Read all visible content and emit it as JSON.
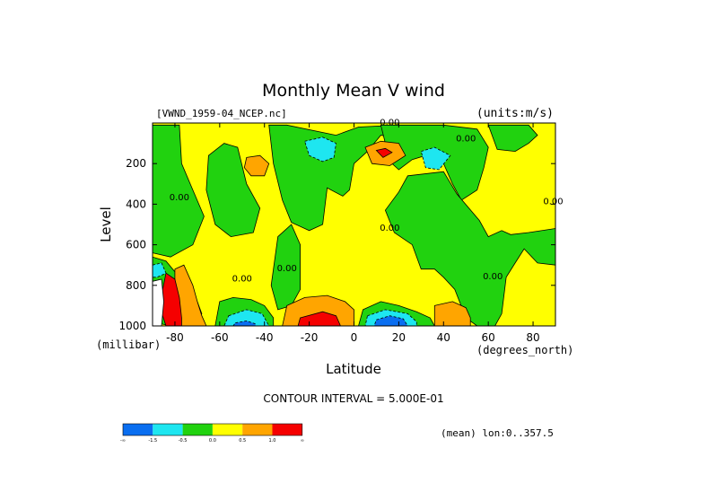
{
  "chart_data": {
    "type": "heatmap",
    "title": "Monthly Mean V wind",
    "file_label": "[VWND_1959-04_NCEP.nc]",
    "units_label": "(units:m/s)",
    "xlabel": "Latitude",
    "ylabel": "Level",
    "x_unit_label": "(degrees_north)",
    "y_unit_label": "(millibar)",
    "xlim": [
      -90,
      90
    ],
    "ylim": [
      0,
      1000
    ],
    "y_inverted": true,
    "x_ticks": [
      -80,
      -60,
      -40,
      -20,
      0,
      20,
      40,
      60,
      80
    ],
    "y_ticks": [
      200,
      400,
      600,
      800,
      1000
    ],
    "x_tick_labels": [
      "-80",
      "-60",
      "-40",
      "-20",
      "0",
      "20",
      "40",
      "60",
      "80"
    ],
    "y_tick_labels": [
      "200",
      "400",
      "600",
      "800",
      "1000"
    ],
    "contour_interval_label": "CONTOUR INTERVAL = 5.000E-01",
    "mean_label": "(mean) lon:0..357.5",
    "contour_labels": [
      {
        "text": "0.00",
        "x": 16,
        "y": 10
      },
      {
        "text": "0.00",
        "x": 50,
        "y": 90
      },
      {
        "text": "0.00",
        "x": -78,
        "y": 380
      },
      {
        "text": "0.00",
        "x": 16,
        "y": 530
      },
      {
        "text": "0.00",
        "x": -50,
        "y": 780
      },
      {
        "text": "0.00",
        "x": -30,
        "y": 730
      },
      {
        "text": "0.00",
        "x": 62,
        "y": 770
      },
      {
        "text": "0.00",
        "x": 89,
        "y": 400
      }
    ],
    "legend": {
      "levels": [
        {
          "label": "-∞",
          "color": "#0a6ef0"
        },
        {
          "label": "-1.5",
          "color": "#1ee6f0"
        },
        {
          "label": "-0.5",
          "color": "#21d20f"
        },
        {
          "label": "0.0",
          "color": "#ffff00"
        },
        {
          "label": "0.5",
          "color": "#ffa500"
        },
        {
          "label": "1.0",
          "color": "#f50000"
        },
        {
          "label": "∞",
          "color": ""
        }
      ]
    },
    "field": {
      "background": "#ffff00",
      "regions": [
        {
          "level": "neg1",
          "color": "#21d20f",
          "points": [
            [
              -90,
              10
            ],
            [
              -78,
              10
            ],
            [
              -77,
              200
            ],
            [
              -72,
              330
            ],
            [
              -67,
              460
            ],
            [
              -72,
              600
            ],
            [
              -82,
              660
            ],
            [
              -90,
              640
            ]
          ]
        },
        {
          "level": "neg1",
          "color": "#21d20f",
          "points": [
            [
              -65,
              160
            ],
            [
              -58,
              100
            ],
            [
              -52,
              120
            ],
            [
              -48,
              300
            ],
            [
              -42,
              420
            ],
            [
              -45,
              540
            ],
            [
              -55,
              560
            ],
            [
              -62,
              500
            ],
            [
              -66,
              330
            ]
          ]
        },
        {
          "level": "neg1",
          "color": "#21d20f",
          "points": [
            [
              -38,
              10
            ],
            [
              -30,
              10
            ],
            [
              -8,
              60
            ],
            [
              2,
              20
            ],
            [
              20,
              10
            ],
            [
              22,
              80
            ],
            [
              12,
              60
            ],
            [
              6,
              140
            ],
            [
              0,
              200
            ],
            [
              -2,
              330
            ],
            [
              -5,
              360
            ],
            [
              -12,
              320
            ],
            [
              -14,
              500
            ],
            [
              -20,
              530
            ],
            [
              -28,
              490
            ],
            [
              -32,
              380
            ],
            [
              -36,
              200
            ]
          ]
        },
        {
          "level": "neg1",
          "color": "#21d20f",
          "points": [
            [
              -34,
              560
            ],
            [
              -28,
              500
            ],
            [
              -24,
              600
            ],
            [
              -24,
              820
            ],
            [
              -28,
              900
            ],
            [
              -34,
              920
            ],
            [
              -37,
              800
            ]
          ]
        },
        {
          "level": "neg1",
          "color": "#21d20f",
          "points": [
            [
              12,
              10
            ],
            [
              40,
              10
            ],
            [
              55,
              30
            ],
            [
              60,
              120
            ],
            [
              58,
              220
            ],
            [
              55,
              330
            ],
            [
              48,
              380
            ],
            [
              44,
              300
            ],
            [
              40,
              200
            ],
            [
              32,
              160
            ],
            [
              26,
              180
            ],
            [
              20,
              230
            ],
            [
              16,
              190
            ]
          ]
        },
        {
          "level": "neg1",
          "color": "#21d20f",
          "points": [
            [
              24,
              260
            ],
            [
              40,
              240
            ],
            [
              46,
              350
            ],
            [
              56,
              480
            ],
            [
              60,
              560
            ],
            [
              66,
              530
            ],
            [
              70,
              550
            ],
            [
              78,
              540
            ],
            [
              90,
              520
            ],
            [
              90,
              700
            ],
            [
              82,
              690
            ],
            [
              76,
              620
            ],
            [
              72,
              690
            ],
            [
              68,
              760
            ],
            [
              66,
              940
            ],
            [
              63,
              1000
            ],
            [
              55,
              1000
            ],
            [
              50,
              960
            ],
            [
              45,
              820
            ],
            [
              40,
              760
            ],
            [
              36,
              720
            ],
            [
              30,
              720
            ],
            [
              26,
              600
            ],
            [
              18,
              540
            ],
            [
              14,
              430
            ],
            [
              20,
              340
            ]
          ]
        },
        {
          "level": "neg1",
          "color": "#21d20f",
          "points": [
            [
              60,
              10
            ],
            [
              78,
              10
            ],
            [
              82,
              60
            ],
            [
              78,
              100
            ],
            [
              72,
              140
            ],
            [
              64,
              130
            ]
          ]
        },
        {
          "level": "neg1",
          "color": "#21d20f",
          "points": [
            [
              4,
              920
            ],
            [
              12,
              880
            ],
            [
              20,
              900
            ],
            [
              28,
              930
            ],
            [
              34,
              960
            ],
            [
              36,
              1000
            ],
            [
              2,
              1000
            ]
          ]
        },
        {
          "level": "neg1",
          "color": "#21d20f",
          "points": [
            [
              -60,
              880
            ],
            [
              -54,
              860
            ],
            [
              -46,
              870
            ],
            [
              -40,
              900
            ],
            [
              -36,
              960
            ],
            [
              -36,
              1000
            ],
            [
              -62,
              1000
            ]
          ]
        },
        {
          "level": "neg1",
          "color": "#21d20f",
          "points": [
            [
              -90,
              660
            ],
            [
              -84,
              680
            ],
            [
              -78,
              760
            ],
            [
              -73,
              830
            ],
            [
              -70,
              880
            ],
            [
              -68,
              940
            ],
            [
              -72,
              1000
            ],
            [
              -82,
              1000
            ],
            [
              -90,
              980
            ]
          ]
        },
        {
          "level": "neg2",
          "color": "#1ee6f0",
          "points": [
            [
              -22,
              90
            ],
            [
              -14,
              70
            ],
            [
              -8,
              100
            ],
            [
              -9,
              170
            ],
            [
              -14,
              190
            ],
            [
              -20,
              160
            ]
          ]
        },
        {
          "level": "neg2",
          "color": "#1ee6f0",
          "points": [
            [
              30,
              140
            ],
            [
              36,
              120
            ],
            [
              43,
              160
            ],
            [
              38,
              230
            ],
            [
              32,
              220
            ]
          ]
        },
        {
          "level": "neg2",
          "color": "#1ee6f0",
          "points": [
            [
              -56,
              950
            ],
            [
              -48,
              920
            ],
            [
              -41,
              940
            ],
            [
              -38,
              1000
            ],
            [
              -58,
              1000
            ]
          ]
        },
        {
          "level": "neg2",
          "color": "#1ee6f0",
          "points": [
            [
              6,
              950
            ],
            [
              14,
              920
            ],
            [
              24,
              940
            ],
            [
              28,
              980
            ],
            [
              28,
              1000
            ],
            [
              5,
              1000
            ]
          ]
        },
        {
          "level": "neg2",
          "color": "#1ee6f0",
          "points": [
            [
              -90,
              700
            ],
            [
              -86,
              690
            ],
            [
              -84,
              740
            ],
            [
              -88,
              760
            ],
            [
              -90,
              760
            ]
          ]
        },
        {
          "level": "neg3",
          "color": "#0a6ef0",
          "points": [
            [
              10,
              970
            ],
            [
              16,
              950
            ],
            [
              22,
              965
            ],
            [
              24,
              1000
            ],
            [
              9,
              1000
            ]
          ]
        },
        {
          "level": "neg3",
          "color": "#0a6ef0",
          "points": [
            [
              -53,
              985
            ],
            [
              -48,
              975
            ],
            [
              -44,
              990
            ],
            [
              -44,
              1000
            ],
            [
              -54,
              1000
            ]
          ]
        },
        {
          "level": "pos1",
          "color": "#ffa500",
          "points": [
            [
              -48,
              170
            ],
            [
              -42,
              160
            ],
            [
              -38,
              200
            ],
            [
              -40,
              260
            ],
            [
              -46,
              260
            ],
            [
              -49,
              220
            ]
          ]
        },
        {
          "level": "pos1",
          "color": "#ffa500",
          "points": [
            [
              5,
              120
            ],
            [
              12,
              90
            ],
            [
              20,
              100
            ],
            [
              23,
              160
            ],
            [
              16,
              210
            ],
            [
              8,
              200
            ]
          ]
        },
        {
          "level": "pos1",
          "color": "#ffa500",
          "points": [
            [
              -30,
              900
            ],
            [
              -22,
              860
            ],
            [
              -12,
              850
            ],
            [
              -4,
              880
            ],
            [
              0,
              920
            ],
            [
              0,
              1000
            ],
            [
              -32,
              1000
            ]
          ]
        },
        {
          "level": "pos1",
          "color": "#ffa500",
          "points": [
            [
              36,
              900
            ],
            [
              44,
              880
            ],
            [
              50,
              910
            ],
            [
              52,
              960
            ],
            [
              52,
              1000
            ],
            [
              36,
              1000
            ]
          ]
        },
        {
          "level": "pos1",
          "color": "#ffa500",
          "points": [
            [
              -80,
              720
            ],
            [
              -76,
              700
            ],
            [
              -72,
              800
            ],
            [
              -70,
              880
            ],
            [
              -68,
              950
            ],
            [
              -66,
              1000
            ],
            [
              -78,
              1000
            ],
            [
              -80,
              880
            ]
          ]
        },
        {
          "level": "pos2",
          "color": "#f50000",
          "points": [
            [
              10,
              135
            ],
            [
              14,
              125
            ],
            [
              17,
              145
            ],
            [
              13,
              170
            ]
          ]
        },
        {
          "level": "pos2",
          "color": "#f50000",
          "points": [
            [
              -24,
              960
            ],
            [
              -14,
              930
            ],
            [
              -8,
              950
            ],
            [
              -6,
              1000
            ],
            [
              -25,
              1000
            ]
          ]
        },
        {
          "level": "pos2",
          "color": "#f50000",
          "points": [
            [
              -84,
              740
            ],
            [
              -80,
              770
            ],
            [
              -78,
              860
            ],
            [
              -77,
              960
            ],
            [
              -77,
              1000
            ],
            [
              -84,
              1000
            ],
            [
              -87,
              900
            ]
          ]
        },
        {
          "level": "white",
          "color": "#ffffff",
          "points": [
            [
              -90,
              780
            ],
            [
              -86,
              770
            ],
            [
              -85,
              880
            ],
            [
              -86,
              1000
            ],
            [
              -90,
              1000
            ]
          ]
        }
      ]
    }
  }
}
